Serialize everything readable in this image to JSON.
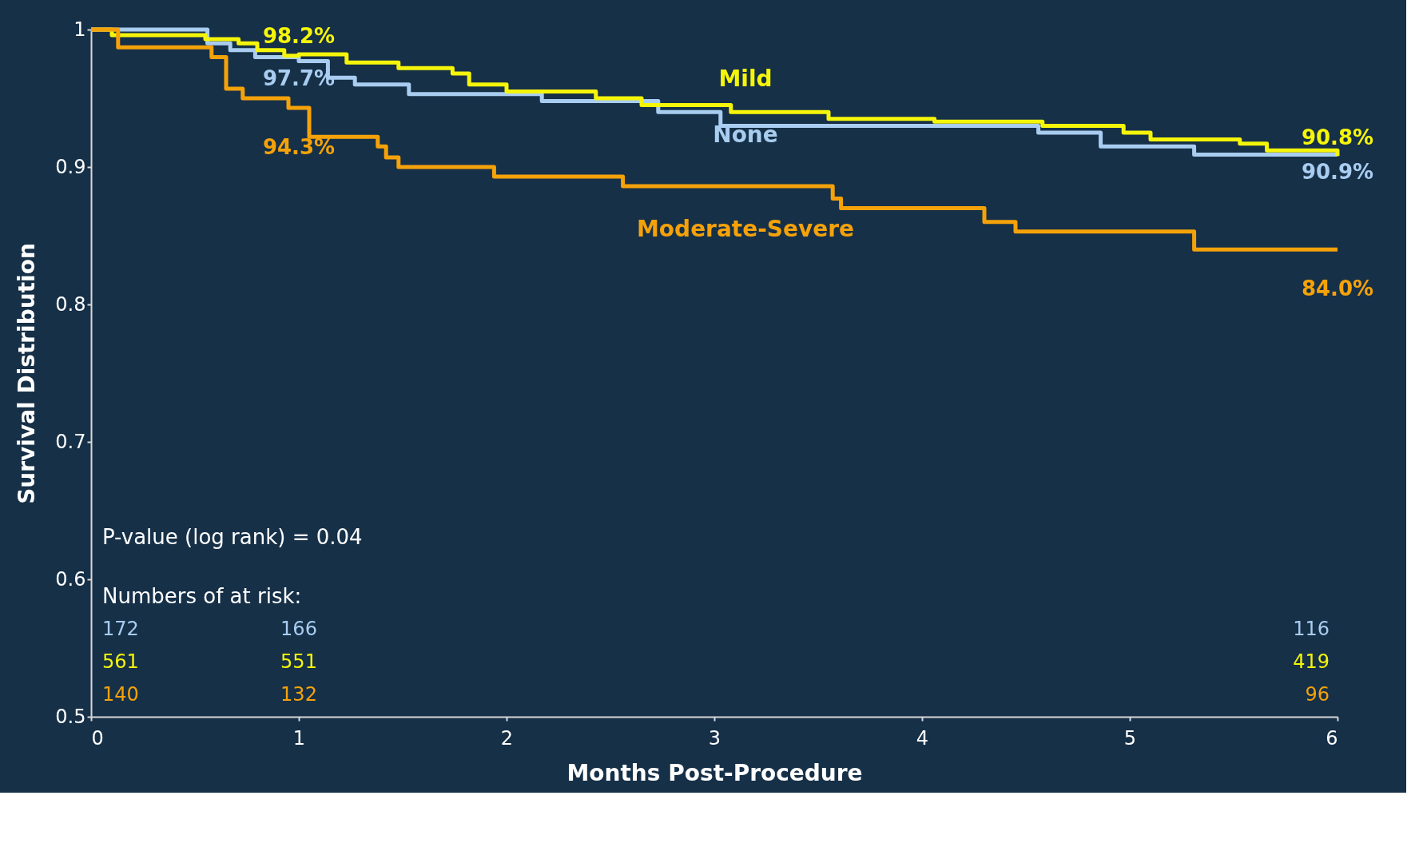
{
  "chart_data": {
    "type": "step",
    "xlabel": "Months Post-Procedure",
    "ylabel": "Survival Distribution",
    "xlim": [
      0,
      6
    ],
    "xticks": [
      0,
      1,
      2,
      3,
      4,
      5,
      6
    ],
    "ylim": [
      0.5,
      1
    ],
    "yticks": [
      0.5,
      0.6,
      0.7,
      0.8,
      0.9,
      1
    ],
    "grid": false,
    "line_style": "solid",
    "marker": "none",
    "series": [
      {
        "name": "None",
        "color": "#a9cdf0",
        "x": [
          0,
          0.56,
          0.67,
          0.79,
          1,
          1.14,
          1.27,
          1.53,
          2.17,
          2.73,
          3.03,
          4.56,
          4.86,
          5.31,
          6
        ],
        "values": [
          1,
          0.99,
          0.985,
          0.98,
          0.977,
          0.965,
          0.96,
          0.953,
          0.948,
          0.94,
          0.93,
          0.925,
          0.915,
          0.909,
          0.909
        ],
        "value_labels": [
          null,
          null,
          null,
          null,
          "97.7%",
          null,
          null,
          null,
          null,
          null,
          null,
          null,
          null,
          null,
          "90.9%"
        ]
      },
      {
        "name": "Mild",
        "color": "#f5f50a",
        "x": [
          0,
          0.1,
          0.55,
          0.71,
          0.8,
          0.93,
          1,
          1.23,
          1.48,
          1.74,
          1.82,
          2.0,
          2.43,
          2.65,
          3.08,
          3.55,
          4.06,
          4.58,
          4.97,
          5.1,
          5.53,
          5.66,
          6
        ],
        "values": [
          1,
          0.996,
          0.993,
          0.99,
          0.985,
          0.981,
          0.982,
          0.976,
          0.972,
          0.968,
          0.96,
          0.955,
          0.95,
          0.945,
          0.94,
          0.935,
          0.933,
          0.93,
          0.925,
          0.92,
          0.917,
          0.912,
          0.908
        ],
        "value_labels": [
          null,
          null,
          null,
          null,
          null,
          null,
          "98.2%",
          null,
          null,
          null,
          null,
          null,
          null,
          null,
          null,
          null,
          null,
          null,
          null,
          null,
          null,
          null,
          "90.8%"
        ]
      },
      {
        "name": "Moderate-Severe",
        "color": "#f5a20a",
        "x": [
          0,
          0.13,
          0.58,
          0.65,
          0.73,
          0.95,
          1,
          1.05,
          1.38,
          1.42,
          1.48,
          1.94,
          2.56,
          3.57,
          3.61,
          4.3,
          4.45,
          5.31,
          6
        ],
        "values": [
          1,
          0.987,
          0.98,
          0.957,
          0.95,
          0.943,
          0.943,
          0.922,
          0.915,
          0.907,
          0.9,
          0.893,
          0.886,
          0.877,
          0.87,
          0.86,
          0.853,
          0.84,
          0.84
        ],
        "value_labels": [
          null,
          null,
          null,
          null,
          null,
          null,
          "94.3%",
          null,
          null,
          null,
          null,
          null,
          null,
          null,
          null,
          null,
          null,
          null,
          "84.0%"
        ]
      }
    ],
    "annotations": [
      "P-value (log rank) = 0.04",
      "Numbers of at risk:",
      "172",
      "166",
      "116",
      "561",
      "551",
      "419",
      "140",
      "132",
      "96"
    ]
  }
}
